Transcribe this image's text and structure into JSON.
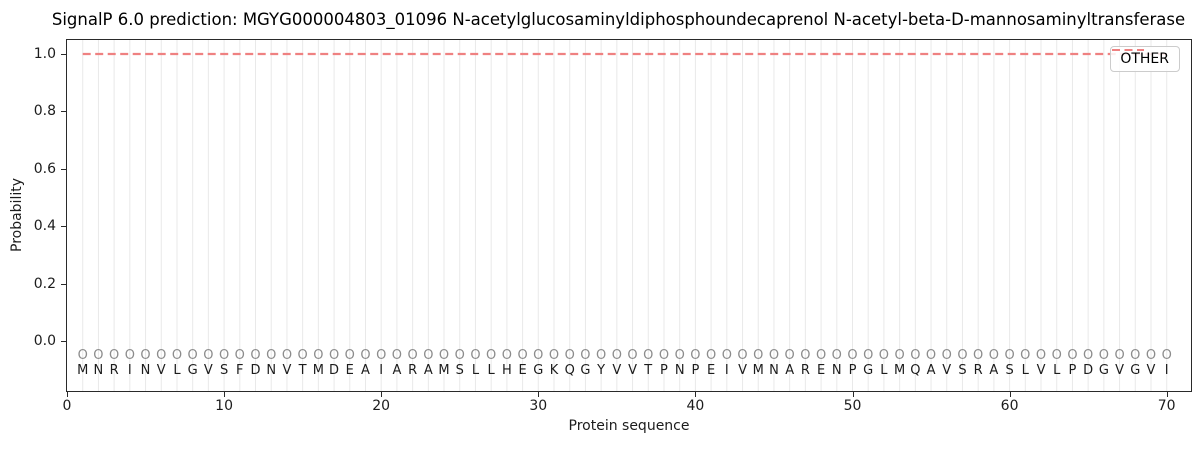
{
  "title": "SignalP 6.0 prediction: MGYG000004803_01096 N-acetylglucosaminyldiphosphoundecaprenol N-acetyl-beta-D-mannosaminyltransferase",
  "axes": {
    "xlabel": "Protein sequence",
    "ylabel": "Probability",
    "x_tick_labels": [
      "0",
      "10",
      "20",
      "30",
      "40",
      "50",
      "60",
      "70"
    ],
    "y_tick_labels": [
      "0.0",
      "0.2",
      "0.4",
      "0.6",
      "0.8",
      "1.0"
    ]
  },
  "legend": {
    "position": "upper right",
    "items": [
      {
        "label": "OTHER",
        "line_style": "dashed",
        "color": "#ef8181"
      }
    ]
  },
  "chart_data": {
    "type": "line",
    "title": "SignalP 6.0 prediction: MGYG000004803_01096 N-acetylglucosaminyldiphosphoundecaprenol N-acetyl-beta-D-mannosaminyltransferase",
    "xlabel": "Protein sequence",
    "ylabel": "Probability",
    "xlim": [
      0,
      71.7
    ],
    "ylim": [
      -0.18,
      1.05
    ],
    "x_ticks": [
      0,
      10,
      20,
      30,
      40,
      50,
      60,
      70
    ],
    "y_ticks": [
      0.0,
      0.2,
      0.4,
      0.6,
      0.8,
      1.0
    ],
    "grid": "vertical gridline at every residue position, no horizontal gridlines",
    "legend_position": "upper right",
    "series": [
      {
        "name": "OTHER",
        "style": "dashed",
        "color": "#ef8181",
        "x_start": 1,
        "x_end": 70,
        "constant_y": 1.0
      }
    ],
    "sequence": "MNRINVLGVSFDNVTMDEAIARAMSLLHEGKQGYVVTPNPEIVMNARENPGLMQAVSRASLVLPDGVGVI",
    "sequence_length": 70,
    "per_position_label": "O",
    "per_position_label_y": -0.055,
    "sequence_letter_y": -0.11
  },
  "colors": {
    "other_line": "#ef8181",
    "position_marker": "#8c8c8c",
    "sequence_letter": "#1c1c1c",
    "grid_line": "#e9e9e9",
    "spine": "#2a2a2a"
  }
}
